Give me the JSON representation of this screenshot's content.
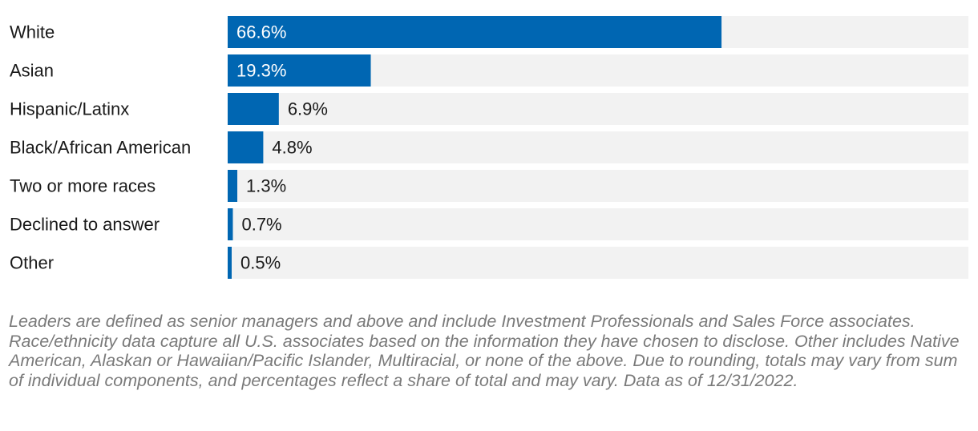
{
  "chart_data": {
    "type": "bar",
    "orientation": "horizontal",
    "categories": [
      "White",
      "Asian",
      "Hispanic/Latinx",
      "Black/African American",
      "Two or more races",
      "Declined to answer",
      "Other"
    ],
    "values": [
      66.6,
      19.3,
      6.9,
      4.8,
      1.3,
      0.7,
      0.5
    ],
    "value_labels": [
      "66.6%",
      "19.3%",
      "6.9%",
      "4.8%",
      "1.3%",
      "0.7%",
      "0.5%"
    ],
    "xlim": [
      0,
      100
    ],
    "grid": false,
    "legend": "none",
    "colors": {
      "bar": "#0066b2",
      "track": "#f2f2f2",
      "label_inside": "#ffffff",
      "label_outside": "#1a1a1a"
    }
  },
  "footnote": "Leaders are defined as senior managers and above and include Investment Professionals and Sales Force associates. Race/ethnicity data capture all U.S. associates based on the information they have chosen to disclose. Other includes Native American, Alaskan or Hawaiian/Pacific Islander, Multiracial, or none of the above. Due to rounding, totals may vary from sum of individual components, and percentages reflect a share of total and may vary. Data as of 12/31/2022."
}
